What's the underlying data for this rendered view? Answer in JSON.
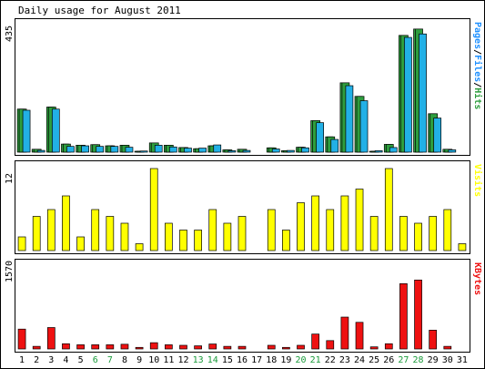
{
  "chart_data": {
    "type": "bar",
    "title": "Daily usage for August 2011",
    "categories": [
      "1",
      "2",
      "3",
      "4",
      "5",
      "6",
      "7",
      "8",
      "9",
      "10",
      "11",
      "12",
      "13",
      "14",
      "15",
      "16",
      "17",
      "18",
      "19",
      "20",
      "21",
      "22",
      "23",
      "24",
      "25",
      "26",
      "27",
      "28",
      "29",
      "30",
      "31"
    ],
    "weekend_days": [
      "6",
      "7",
      "13",
      "14",
      "20",
      "21",
      "27",
      "28"
    ],
    "panels": [
      {
        "ymax_label": "435",
        "ylim": [
          0,
          435
        ],
        "series": [
          {
            "name": "Pages",
            "values": [
              149,
              10,
              156,
              28,
              24,
              26,
              22,
              24,
              2,
              32,
              24,
              16,
              12,
              22,
              8,
              10,
              0,
              15,
              5,
              17,
              109,
              53,
              240,
              193,
              3,
              27,
              404,
              426,
              133,
              10,
              0
            ],
            "color": "#2e9e3e"
          },
          {
            "name": "Files",
            "values": [
              149,
              10,
              156,
              28,
              24,
              26,
              22,
              24,
              2,
              32,
              24,
              16,
              12,
              22,
              8,
              10,
              0,
              15,
              5,
              17,
              109,
              53,
              240,
              193,
              3,
              27,
              404,
              426,
              133,
              10,
              0
            ],
            "color": "#2e9e3e"
          },
          {
            "name": "Hits",
            "values": [
              145,
              6,
              149,
              20,
              22,
              20,
              20,
              17,
              4,
              24,
              18,
              14,
              14,
              25,
              5,
              6,
              0,
              11,
              6,
              15,
              102,
              44,
              230,
              178,
              5,
              16,
              397,
              409,
              118,
              8,
              0
            ],
            "color": "#22b0e6"
          }
        ],
        "legend": [
          {
            "text": "Pages",
            "color": "#1e90ff"
          },
          {
            "text": "/",
            "color": "#000000"
          },
          {
            "text": "Files",
            "color": "#1e90ff"
          },
          {
            "text": "/",
            "color": "#000000"
          },
          {
            "text": "Hits",
            "color": "#2e9e3e"
          }
        ]
      },
      {
        "ymax_label": "12",
        "ylim": [
          0,
          12
        ],
        "series": [
          {
            "name": "Visits",
            "values": [
              2,
              5,
              6,
              8,
              2,
              6,
              5,
              4,
              1,
              12,
              4,
              3,
              3,
              6,
              4,
              5,
              0,
              6,
              3,
              7,
              8,
              6,
              8,
              9,
              5,
              12,
              5,
              4,
              5,
              6,
              1
            ],
            "color": "#ffff00"
          }
        ],
        "legend": [
          {
            "text": "Visits",
            "color": "#ffff00"
          }
        ]
      },
      {
        "ymax_label": "1570",
        "ylim": [
          0,
          1570
        ],
        "series": [
          {
            "name": "KBytes",
            "values": [
              380,
              50,
              410,
              100,
              80,
              80,
              80,
              90,
              30,
              120,
              80,
              70,
              60,
              95,
              50,
              50,
              0,
              70,
              30,
              70,
              285,
              160,
              610,
              510,
              40,
              100,
              1250,
              1320,
              360,
              50,
              0
            ],
            "color": "#ee1111"
          }
        ],
        "legend": [
          {
            "text": "KBytes",
            "color": "#ee1111"
          }
        ]
      }
    ],
    "grid": false,
    "legend_position": "right, vertical"
  }
}
